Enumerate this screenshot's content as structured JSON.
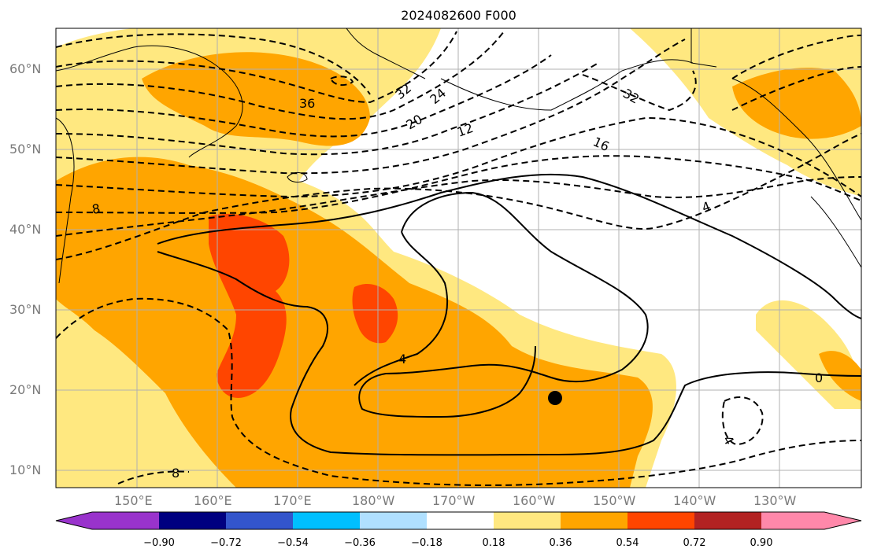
{
  "title": "2024082600 F000",
  "lat_labels": [
    "60°N",
    "50°N",
    "40°N",
    "30°N",
    "20°N",
    "10°N"
  ],
  "lon_labels": [
    "150°E",
    "160°E",
    "170°E",
    "180°W",
    "170°W",
    "160°W",
    "150°W",
    "140°W",
    "130°W"
  ],
  "contour_labels": [
    "36",
    "32",
    "24",
    "20",
    "12",
    "16",
    "32",
    "4",
    "4",
    "0",
    "4",
    "8",
    "8"
  ],
  "colorbar": {
    "ticks": [
      "−0.90",
      "−0.72",
      "−0.54",
      "−0.36",
      "−0.18",
      "0.18",
      "0.36",
      "0.54",
      "0.72",
      "0.90"
    ],
    "colors": [
      "#9933cc",
      "#000080",
      "#3355cc",
      "#00bfff",
      "#b0e0ff",
      "#ffffff",
      "#ffe880",
      "#ffa500",
      "#ff4500",
      "#b22222",
      "#ff88aa"
    ]
  },
  "marker": "black-dot"
}
